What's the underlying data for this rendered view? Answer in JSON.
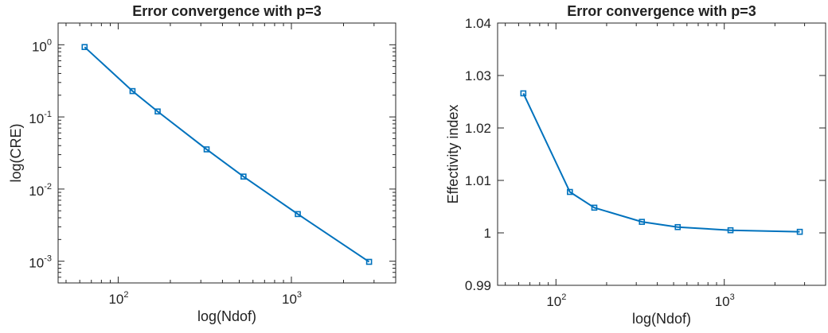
{
  "colors": {
    "series": "#0072BD",
    "axis": "#262626",
    "background": "#ffffff"
  },
  "chart_data": [
    {
      "type": "line",
      "title": "Error convergence with p=3",
      "xlabel": "log(Ndof)",
      "ylabel": "log(CRE)",
      "xscale": "log",
      "yscale": "log",
      "xlim": [
        45,
        4000
      ],
      "ylim": [
        0.0005,
        2
      ],
      "x_ticks": [
        {
          "base": "10",
          "exp": "2",
          "value": 100
        },
        {
          "base": "10",
          "exp": "3",
          "value": 1000
        }
      ],
      "y_ticks": [
        {
          "base": "10",
          "exp": "0",
          "value": 1
        },
        {
          "base": "10",
          "exp": "-1",
          "value": 0.1
        },
        {
          "base": "10",
          "exp": "-2",
          "value": 0.01
        },
        {
          "base": "10",
          "exp": "-3",
          "value": 0.001
        }
      ],
      "marker": "square",
      "grid": false,
      "series": [
        {
          "x": [
            64,
            121,
            169,
            324,
            529,
            1089,
            2809
          ],
          "y": [
            0.93,
            0.228,
            0.119,
            0.0355,
            0.0149,
            0.0045,
            0.00098
          ]
        }
      ]
    },
    {
      "type": "line",
      "title": "Error convergence with p=3",
      "xlabel": "log(Ndof)",
      "ylabel": "Effectivity index",
      "xscale": "log",
      "yscale": "linear",
      "xlim": [
        45,
        4000
      ],
      "ylim": [
        0.99,
        1.04
      ],
      "x_ticks": [
        {
          "base": "10",
          "exp": "2",
          "value": 100
        },
        {
          "base": "10",
          "exp": "3",
          "value": 1000
        }
      ],
      "y_ticks": [
        {
          "label": "0.99",
          "value": 0.99
        },
        {
          "label": "1",
          "value": 1.0
        },
        {
          "label": "1.01",
          "value": 1.01
        },
        {
          "label": "1.02",
          "value": 1.02
        },
        {
          "label": "1.03",
          "value": 1.03
        },
        {
          "label": "1.04",
          "value": 1.04
        }
      ],
      "marker": "square",
      "grid": false,
      "series": [
        {
          "x": [
            64,
            121,
            169,
            324,
            529,
            1089,
            2809
          ],
          "y": [
            1.0266,
            1.0078,
            1.0048,
            1.0021,
            1.0011,
            1.0005,
            1.0002
          ]
        }
      ]
    }
  ]
}
